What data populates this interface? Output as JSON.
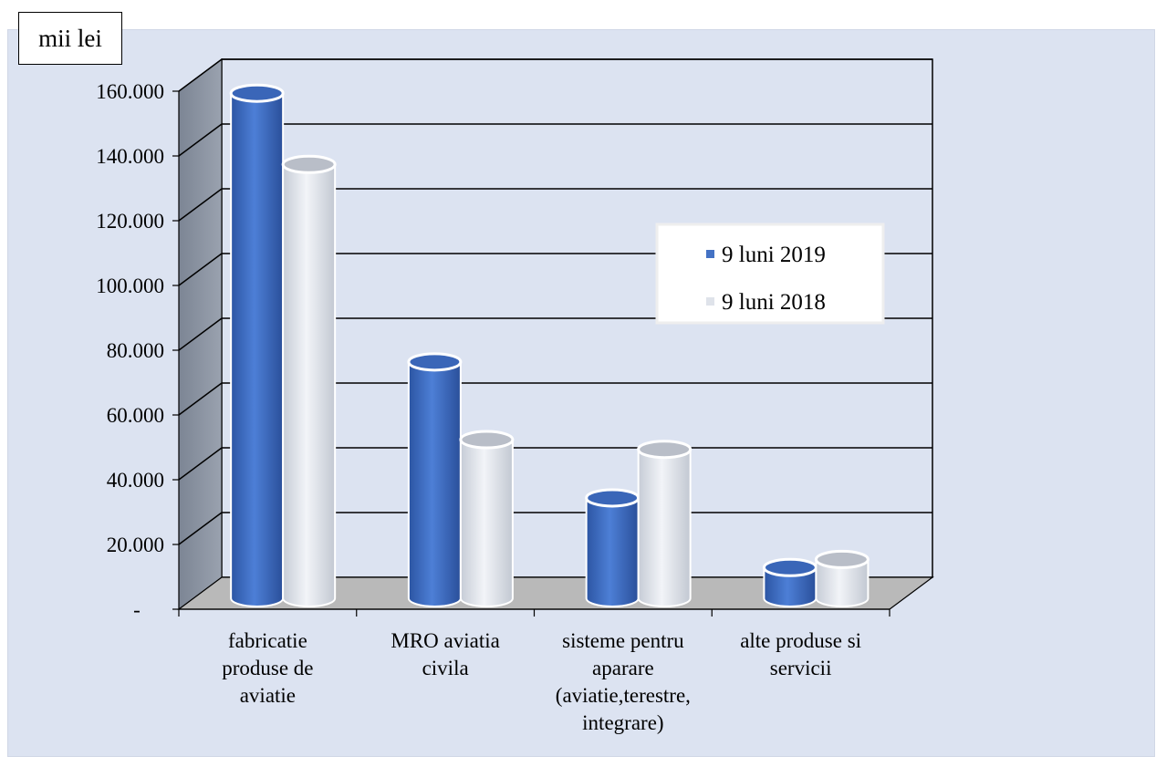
{
  "unit_label": "mii lei",
  "chart_data": {
    "type": "bar",
    "title": "",
    "ylabel": "mii lei",
    "xlabel": "",
    "ylim": [
      0,
      160000
    ],
    "y_ticks": [
      "-",
      "20.000",
      "40.000",
      "60.000",
      "80.000",
      "100.000",
      "120.000",
      "140.000",
      "160.000"
    ],
    "categories": [
      [
        "fabricatie",
        "produse de",
        "aviatie"
      ],
      [
        "MRO aviatia",
        "civila"
      ],
      [
        "sisteme pentru",
        "aparare",
        "(aviatie,terestre,",
        "integrare)"
      ],
      [
        "alte produse si",
        "servicii"
      ]
    ],
    "series": [
      {
        "name": "9 luni 2019",
        "values": [
          156000,
          73000,
          31000,
          9500
        ]
      },
      {
        "name": "9 luni 2018",
        "values": [
          134000,
          49000,
          46000,
          12000
        ]
      }
    ],
    "legend_position": "right",
    "grid": true
  },
  "colors": {
    "series_2019": "#4472c4",
    "series_2018": "#dfe3ea",
    "back_wall": "#dce3f1",
    "side_wall": "#8c94a2",
    "floor": "#b9b9b9"
  }
}
